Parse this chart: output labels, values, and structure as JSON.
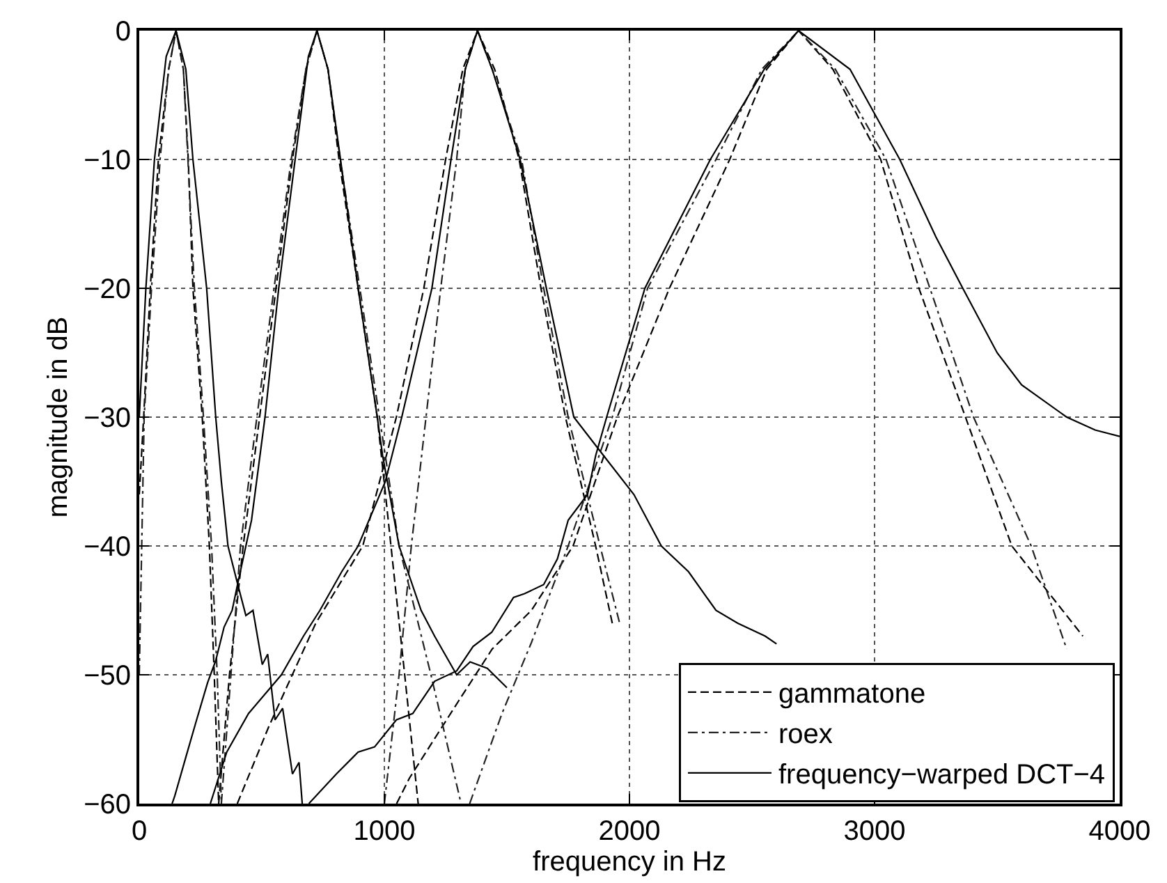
{
  "chart_data": {
    "type": "line",
    "xlabel": "frequency in Hz",
    "ylabel": "magnitude in dB",
    "xlim": [
      0,
      4000
    ],
    "xticks": [
      0,
      1000,
      2000,
      3000,
      4000
    ],
    "ylim": [
      -60,
      0
    ],
    "yticks": [
      {
        "value": -60,
        "label": "−60"
      },
      {
        "value": -50,
        "label": "−50"
      },
      {
        "value": -40,
        "label": "−40"
      },
      {
        "value": -30,
        "label": "−30"
      },
      {
        "value": -20,
        "label": "−20"
      },
      {
        "value": -10,
        "label": "−10"
      },
      0
    ],
    "grid": true,
    "legend": "bottom right",
    "marker": "none",
    "series": [
      {
        "name": "gammatone",
        "color": "#000000",
        "line_style": "dashed",
        "x": [
          0,
          18,
          45,
          78,
          120,
          150,
          180,
          200,
          219,
          257,
          286,
          306,
          324,
          null,
          324,
          368,
          424,
          491,
          558,
          625,
          680,
          725,
          770,
          815,
          893,
          971,
          1027,
          1083,
          1138,
          null,
          400,
          529,
          720,
          912,
          1049,
          1161,
          1250,
          1320,
          1380,
          1450,
          1550,
          1639,
          1739,
          1862,
          1930,
          null,
          1050,
          1103,
          1304,
          1440,
          1600,
          1770,
          1950,
          2163,
          2409,
          2560,
          2690,
          2830,
          3025,
          3181,
          3371,
          3560,
          3850
        ],
        "values": [
          -36,
          -30,
          -20,
          -10,
          -3,
          0,
          -3,
          -10,
          -20,
          -30,
          -40,
          -50,
          -60,
          null,
          -60,
          -50,
          -40,
          -30,
          -20,
          -10,
          -3,
          0,
          -3,
          -10,
          -20,
          -30,
          -40,
          -50,
          -60,
          null,
          -60,
          -54,
          -46,
          -40,
          -30,
          -20,
          -10,
          -3,
          0,
          -3,
          -10,
          -20,
          -30,
          -40,
          -46,
          null,
          -60,
          -58,
          -52,
          -48,
          -45,
          -40,
          -30,
          -20,
          -10,
          -3,
          0,
          -3,
          -10,
          -20,
          -30,
          -40,
          -47
        ]
      },
      {
        "name": "roex",
        "color": "#222222",
        "line_style": "dashdot",
        "x": [
          0,
          20,
          50,
          85,
          120,
          150,
          180,
          225,
          262,
          295,
          318,
          335,
          null,
          335,
          413,
          480,
          550,
          620,
          680,
          725,
          770,
          820,
          900,
          980,
          1060,
          1190,
          1313,
          null,
          1000,
          1060,
          1110,
          1170,
          1230,
          1295,
          1330,
          1380,
          1440,
          1560,
          1650,
          1750,
          1880,
          1960,
          null,
          1348,
          1480,
          1600,
          1750,
          1930,
          2074,
          2353,
          2540,
          2690,
          2840,
          3047,
          3226,
          3404,
          3639,
          3784
        ],
        "values": [
          -50,
          -30,
          -20,
          -10,
          -3,
          0,
          -3,
          -20,
          -30,
          -40,
          -50,
          -60,
          null,
          -60,
          -40,
          -30,
          -20,
          -10,
          -3,
          0,
          -3,
          -10,
          -20,
          -30,
          -40,
          -50,
          -60,
          null,
          -60,
          -50,
          -40,
          -30,
          -20,
          -10,
          -3,
          0,
          -3,
          -10,
          -20,
          -30,
          -40,
          -46,
          null,
          -60,
          -53,
          -47.5,
          -40,
          -30,
          -20,
          -10,
          -3,
          0,
          -3,
          -10,
          -20,
          -30,
          -40,
          -48
        ]
      },
      {
        "name": "frequency−warped DCT−4",
        "color": "#000000",
        "line_style": "solid",
        "x": [
          0,
          27,
          62,
          110,
          150,
          190,
          219,
          275,
          312,
          335,
          362,
          402,
          435,
          464,
          502,
          524,
          554,
          585,
          625,
          652,
          665,
          null,
          134,
          145,
          190,
          234,
          279,
          312,
          346,
          379,
          402,
          435,
          458,
          513,
          569,
          636,
          690,
          725,
          770,
          821,
          893,
          971,
          993,
          1060,
          1150,
          1205,
          1295,
          1350,
          1420,
          1500,
          null,
          290,
          357,
          446,
          580,
          670,
          737,
          826,
          893,
          1004,
          1071,
          1194,
          1272,
          1330,
          1380,
          1440,
          1554,
          1661,
          1773,
          1895,
          2018,
          2130,
          2241,
          2353,
          2442,
          2554,
          2600,
          null,
          692,
          804,
          893,
          960,
          1049,
          1116,
          1205,
          1295,
          1362,
          1438,
          1527,
          1572,
          1650,
          1706,
          1750,
          1829,
          1862,
          1907,
          2063,
          2330,
          2550,
          2690,
          2900,
          3103,
          3250,
          3360,
          3500,
          3600,
          3784,
          3900,
          4000
        ],
        "values": [
          -30,
          -20,
          -10,
          -2,
          0,
          -3,
          -10,
          -20,
          -30,
          -35,
          -40,
          -43,
          -45.4,
          -45,
          -49.2,
          -48.4,
          -53.5,
          -52.6,
          -57.7,
          -56.8,
          -60,
          null,
          -60,
          -59.4,
          -56.4,
          -53.5,
          -50.6,
          -48.9,
          -46.3,
          -45,
          -42.9,
          -40,
          -38,
          -30,
          -20,
          -10,
          -2,
          0,
          -3,
          -10,
          -20,
          -30,
          -33,
          -40,
          -45,
          -47,
          -50,
          -49,
          -49.5,
          -51,
          null,
          -60,
          -56,
          -53,
          -50,
          -47,
          -45,
          -42,
          -40,
          -35,
          -30,
          -20,
          -10,
          -3,
          0,
          -3,
          -10,
          -20,
          -30,
          -33,
          -36,
          -40,
          -42,
          -45,
          -46,
          -47,
          -47.6,
          null,
          -60,
          -57.7,
          -56,
          -55.6,
          -53.5,
          -53,
          -50.5,
          -49.7,
          -47.8,
          -46.7,
          -44,
          -43.7,
          -43,
          -41,
          -38,
          -36,
          -33,
          -30,
          -20,
          -10,
          -3,
          0,
          -3,
          -10,
          -16,
          -20,
          -25,
          -27.5,
          -30,
          -31,
          -31.5
        ]
      }
    ]
  }
}
